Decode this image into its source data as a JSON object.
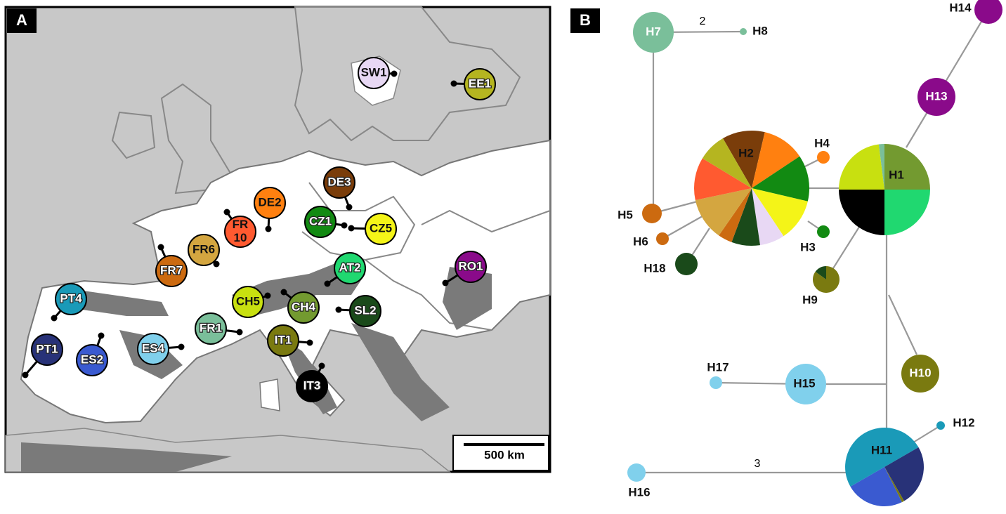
{
  "panel_a": {
    "label": "A",
    "scale_bar": "500 km",
    "populations": [
      {
        "label": "SW1",
        "color": "#e8d8f4"
      },
      {
        "label": "EE1",
        "color": "#b5b520"
      },
      {
        "label": "DE3",
        "color": "#7a3d0a"
      },
      {
        "label": "DE2",
        "color": "#ff8010"
      },
      {
        "label": "FR 10",
        "color": "#ff5a30"
      },
      {
        "label": "FR6",
        "color": "#d4a640"
      },
      {
        "label": "FR7",
        "color": "#cc6a10"
      },
      {
        "label": "CZ1",
        "color": "#128a12"
      },
      {
        "label": "CZ5",
        "color": "#f4f418"
      },
      {
        "label": "RO1",
        "color": "#8a0a8a"
      },
      {
        "label": "AT2",
        "color": "#20d870"
      },
      {
        "label": "CH5",
        "color": "#c8e010"
      },
      {
        "label": "CH4",
        "color": "#739a30"
      },
      {
        "label": "SL2",
        "color": "#1a4a1a"
      },
      {
        "label": "FR1",
        "color": "#7abf9a"
      },
      {
        "label": "IT1",
        "color": "#7a7a10"
      },
      {
        "label": "ES4",
        "color": "#80d0ec"
      },
      {
        "label": "PT4",
        "color": "#1a9ab8"
      },
      {
        "label": "PT1",
        "color": "#283278"
      },
      {
        "label": "ES2",
        "color": "#3a5ad0"
      },
      {
        "label": "IT3",
        "color": "#000000"
      }
    ]
  },
  "panel_b": {
    "label": "B",
    "edge_labels": [
      "2",
      "3"
    ],
    "nodes": [
      {
        "label": "H1",
        "slices": [
          {
            "color": "#739a30",
            "value": 25
          },
          {
            "color": "#20d870",
            "value": 25
          },
          {
            "color": "#000000",
            "value": 25
          },
          {
            "color": "#c8e010",
            "value": 23
          },
          {
            "color": "#7abf9a",
            "value": 2
          }
        ]
      },
      {
        "label": "H2",
        "slices": [
          {
            "color": "#7a3d0a",
            "value": 12
          },
          {
            "color": "#ff8010",
            "value": 12
          },
          {
            "color": "#128a12",
            "value": 13
          },
          {
            "color": "#f4f418",
            "value": 12
          },
          {
            "color": "#e8d8f4",
            "value": 7
          },
          {
            "color": "#1a4a1a",
            "value": 8
          },
          {
            "color": "#cc6a10",
            "value": 4
          },
          {
            "color": "#d4a640",
            "value": 12
          },
          {
            "color": "#ff5a30",
            "value": 12
          },
          {
            "color": "#b5b520",
            "value": 8
          }
        ]
      },
      {
        "label": "H3",
        "color": "#128a12"
      },
      {
        "label": "H4",
        "color": "#ff8010"
      },
      {
        "label": "H5",
        "color": "#cc6a10"
      },
      {
        "label": "H6",
        "color": "#cc6a10"
      },
      {
        "label": "H7",
        "color": "#7abf9a"
      },
      {
        "label": "H8",
        "color": "#7abf9a"
      },
      {
        "label": "H9",
        "slices": [
          {
            "color": "#7a7a10",
            "value": 85
          },
          {
            "color": "#1a4a1a",
            "value": 15
          }
        ]
      },
      {
        "label": "H10",
        "color": "#7a7a10"
      },
      {
        "label": "H11",
        "slices": [
          {
            "color": "#1a9ab8",
            "value": 50
          },
          {
            "color": "#283278",
            "value": 25
          },
          {
            "color": "#7a7a10",
            "value": 1
          },
          {
            "color": "#3a5ad0",
            "value": 24
          }
        ]
      },
      {
        "label": "H12",
        "color": "#1a9ab8"
      },
      {
        "label": "H13",
        "color": "#8a0a8a"
      },
      {
        "label": "H14",
        "color": "#8a0a8a"
      },
      {
        "label": "H15",
        "color": "#80d0ec"
      },
      {
        "label": "H16",
        "color": "#80d0ec"
      },
      {
        "label": "H17",
        "color": "#80d0ec"
      },
      {
        "label": "H18",
        "color": "#1a4a1a"
      }
    ]
  }
}
